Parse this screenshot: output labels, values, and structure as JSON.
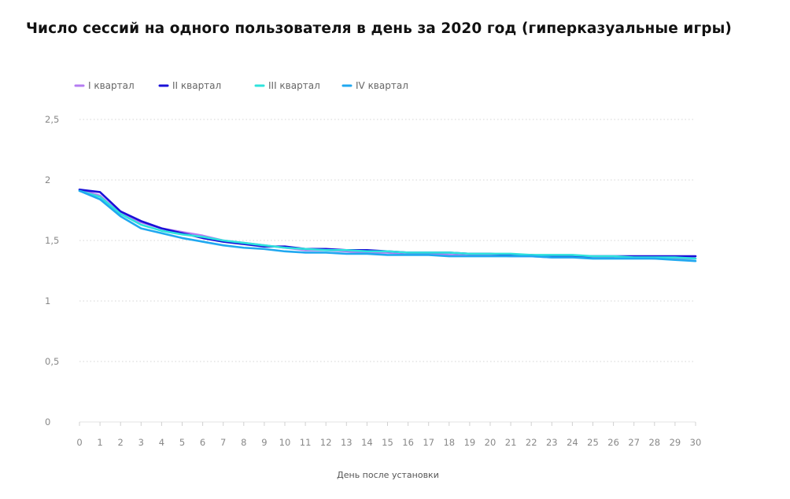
{
  "chart_data": {
    "type": "line",
    "title": "Число сессий на одного пользователя в день за 2020 год (гиперказуальные игры)",
    "xlabel": "День после установки",
    "ylabel": "",
    "x": [
      0,
      1,
      2,
      3,
      4,
      5,
      6,
      7,
      8,
      9,
      10,
      11,
      12,
      13,
      14,
      15,
      16,
      17,
      18,
      19,
      20,
      21,
      22,
      23,
      24,
      25,
      26,
      27,
      28,
      29,
      30
    ],
    "x_tick_labels": [
      "0",
      "1",
      "2",
      "3",
      "4",
      "5",
      "6",
      "7",
      "8",
      "9",
      "10",
      "11",
      "12",
      "13",
      "14",
      "15",
      "16",
      "17",
      "18",
      "19",
      "20",
      "21",
      "22",
      "23",
      "24",
      "25",
      "26",
      "27",
      "28",
      "29",
      "30"
    ],
    "ylim": [
      0,
      2.5
    ],
    "y_ticks": [
      0,
      0.5,
      1,
      1.5,
      2,
      2.5
    ],
    "y_tick_labels": [
      "0",
      "0,5",
      "1",
      "1,5",
      "2",
      "2,5"
    ],
    "grid": "horizontal dotted",
    "legend_position": "top-left",
    "series": [
      {
        "name": "I квартал",
        "color": "#b57cf2",
        "values": [
          1.92,
          1.87,
          1.72,
          1.65,
          1.6,
          1.57,
          1.54,
          1.5,
          1.48,
          1.46,
          1.44,
          1.42,
          1.42,
          1.41,
          1.4,
          1.4,
          1.39,
          1.39,
          1.38,
          1.38,
          1.38,
          1.37,
          1.37,
          1.36,
          1.36,
          1.36,
          1.36,
          1.36,
          1.35,
          1.35,
          1.35
        ]
      },
      {
        "name": "II квартал",
        "color": "#1a10d8",
        "values": [
          1.92,
          1.9,
          1.74,
          1.66,
          1.6,
          1.56,
          1.52,
          1.49,
          1.47,
          1.45,
          1.45,
          1.43,
          1.43,
          1.42,
          1.42,
          1.41,
          1.4,
          1.4,
          1.4,
          1.39,
          1.39,
          1.38,
          1.38,
          1.37,
          1.37,
          1.37,
          1.37,
          1.37,
          1.37,
          1.37,
          1.37
        ]
      },
      {
        "name": "III квартал",
        "color": "#2ee3dc",
        "values": [
          1.91,
          1.86,
          1.72,
          1.63,
          1.58,
          1.55,
          1.53,
          1.5,
          1.48,
          1.46,
          1.44,
          1.43,
          1.42,
          1.42,
          1.41,
          1.41,
          1.4,
          1.4,
          1.4,
          1.39,
          1.39,
          1.39,
          1.38,
          1.38,
          1.38,
          1.37,
          1.37,
          1.36,
          1.36,
          1.36,
          1.35
        ]
      },
      {
        "name": "IV квартал",
        "color": "#20a8f0",
        "values": [
          1.91,
          1.84,
          1.7,
          1.6,
          1.56,
          1.52,
          1.49,
          1.46,
          1.44,
          1.43,
          1.41,
          1.4,
          1.4,
          1.39,
          1.39,
          1.38,
          1.38,
          1.38,
          1.37,
          1.37,
          1.37,
          1.37,
          1.37,
          1.36,
          1.36,
          1.35,
          1.35,
          1.35,
          1.35,
          1.34,
          1.33
        ]
      }
    ]
  }
}
